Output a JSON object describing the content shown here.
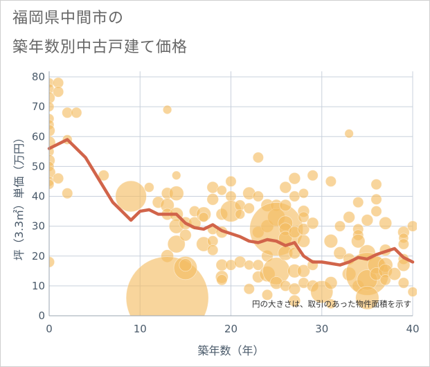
{
  "title_line1": "福岡県中間市の",
  "title_line2": "築年数別中古戸建て価格",
  "colors": {
    "bubble": "#f4bb5f",
    "line": "#d1644a",
    "grid": "#c8d0dc",
    "axis_text": "#4a5a6a",
    "title_text": "#666666"
  },
  "chart_data": {
    "type": "scatter",
    "xlabel": "築年数（年）",
    "ylabel": "坪（3.3㎡）単価（万円）",
    "xlim": [
      0,
      40
    ],
    "ylim": [
      0,
      80
    ],
    "xticks": [
      "0",
      "10",
      "20",
      "30",
      "40"
    ],
    "yticks": [
      "0",
      "10",
      "20",
      "30",
      "40",
      "50",
      "60",
      "70",
      "80"
    ],
    "annotation": "円の大きさは、取引のあった物件面積を示す",
    "grid": true,
    "bubbles": [
      [
        0,
        78,
        1
      ],
      [
        0,
        76,
        1
      ],
      [
        0,
        73,
        1.2
      ],
      [
        0,
        70,
        1
      ],
      [
        0,
        66,
        1
      ],
      [
        0,
        64,
        1
      ],
      [
        0,
        62,
        1.2
      ],
      [
        0,
        58,
        1.3
      ],
      [
        0,
        55,
        1
      ],
      [
        0,
        52,
        1.2
      ],
      [
        0,
        50,
        1
      ],
      [
        0,
        48,
        1.3
      ],
      [
        0,
        45,
        1
      ],
      [
        0,
        44,
        1
      ],
      [
        0,
        18,
        1.1
      ],
      [
        1,
        78,
        1.1
      ],
      [
        1,
        75,
        1.1
      ],
      [
        1,
        46,
        1.1
      ],
      [
        2,
        68,
        1.1
      ],
      [
        2,
        59,
        1
      ],
      [
        2,
        41,
        1.1
      ],
      [
        3,
        68,
        1.1
      ],
      [
        6,
        47,
        1.1
      ],
      [
        9,
        40,
        3.2
      ],
      [
        11,
        43,
        1
      ],
      [
        12,
        38,
        1.2
      ],
      [
        13,
        69,
        0.9
      ],
      [
        13,
        41,
        1.2
      ],
      [
        13,
        37,
        1.4
      ],
      [
        13,
        34,
        1.2
      ],
      [
        13,
        20,
        1.3
      ],
      [
        13,
        6,
        8.5
      ],
      [
        14,
        47,
        0.9
      ],
      [
        14,
        41,
        1.5
      ],
      [
        14,
        34,
        1.4
      ],
      [
        14,
        30,
        1.5
      ],
      [
        14,
        24,
        1.8
      ],
      [
        15,
        31,
        1.3
      ],
      [
        15,
        27,
        1.2
      ],
      [
        15,
        16,
        2.4
      ],
      [
        15,
        17,
        1.3
      ],
      [
        16,
        35,
        1.1
      ],
      [
        16,
        31,
        1.3
      ],
      [
        17,
        34,
        1.5
      ],
      [
        17,
        24,
        1.5
      ],
      [
        17,
        33,
        1
      ],
      [
        18,
        43,
        1.2
      ],
      [
        18,
        39,
        1.2
      ],
      [
        18,
        29,
        1.1
      ],
      [
        18,
        25,
        1.1
      ],
      [
        18,
        22,
        1.1
      ],
      [
        19,
        42,
        1
      ],
      [
        19,
        34,
        1.2
      ],
      [
        19,
        28,
        1.2
      ],
      [
        19,
        17,
        1.2
      ],
      [
        19,
        13,
        1.3
      ],
      [
        19,
        12,
        1.1
      ],
      [
        20,
        45,
        1.1
      ],
      [
        20,
        40,
        1.1
      ],
      [
        20,
        35,
        2.2
      ],
      [
        20,
        17,
        1.1
      ],
      [
        21,
        37,
        1.1
      ],
      [
        21,
        34,
        1
      ],
      [
        21,
        18,
        1.2
      ],
      [
        22,
        41,
        1.3
      ],
      [
        22,
        36,
        1.1
      ],
      [
        22,
        17,
        1
      ],
      [
        22,
        9,
        1.1
      ],
      [
        23,
        53,
        1.1
      ],
      [
        23,
        40,
        1.1
      ],
      [
        23,
        28,
        1.2
      ],
      [
        23,
        17,
        1.1
      ],
      [
        23,
        13,
        1.2
      ],
      [
        24,
        37,
        1.3
      ],
      [
        24,
        30,
        1.3
      ],
      [
        24,
        20,
        1.2
      ],
      [
        24,
        14,
        1.6
      ],
      [
        24,
        7,
        1.1
      ],
      [
        25,
        37,
        1.2
      ],
      [
        25,
        33,
        1.8
      ],
      [
        25,
        29,
        5.5
      ],
      [
        25,
        15,
        2.8
      ],
      [
        25,
        11,
        1.3
      ],
      [
        26,
        43,
        1.2
      ],
      [
        26,
        37,
        1.2
      ],
      [
        26,
        31,
        1.5
      ],
      [
        26,
        29,
        1.3
      ],
      [
        26,
        26,
        1.4
      ],
      [
        26,
        21,
        1.5
      ],
      [
        26,
        10,
        1.1
      ],
      [
        27,
        46,
        1.2
      ],
      [
        27,
        40,
        1.1
      ],
      [
        27,
        28,
        1.2
      ],
      [
        27,
        21,
        1.2
      ],
      [
        27,
        15,
        1.4
      ],
      [
        27,
        9,
        1.2
      ],
      [
        27,
        5,
        1.2
      ],
      [
        28,
        41,
        1
      ],
      [
        28,
        35,
        1.2
      ],
      [
        28,
        33,
        1.1
      ],
      [
        28,
        29,
        1.2
      ],
      [
        28,
        25,
        1.3
      ],
      [
        28,
        15,
        1.3
      ],
      [
        28,
        11,
        1.1
      ],
      [
        29,
        47,
        1.1
      ],
      [
        29,
        31,
        1.2
      ],
      [
        29,
        17,
        1.1
      ],
      [
        29,
        10,
        1.2
      ],
      [
        30,
        8,
        2.3
      ],
      [
        31,
        45,
        1.1
      ],
      [
        31,
        25,
        1.4
      ],
      [
        31,
        11,
        1.3
      ],
      [
        31,
        4,
        1
      ],
      [
        32,
        30,
        1.1
      ],
      [
        32,
        21,
        1.3
      ],
      [
        33,
        61,
        0.9
      ],
      [
        33,
        33,
        1.2
      ],
      [
        33,
        14,
        1.4
      ],
      [
        33,
        19,
        1.2
      ],
      [
        34,
        38,
        1.1
      ],
      [
        34,
        29,
        1.1
      ],
      [
        34,
        27,
        1.1
      ],
      [
        34,
        25,
        1.4
      ],
      [
        34,
        10,
        1.2
      ],
      [
        35,
        32,
        1.2
      ],
      [
        35,
        21,
        1.7
      ],
      [
        35,
        14,
        4.4
      ],
      [
        35,
        12,
        2.1
      ],
      [
        35,
        6,
        2.4
      ],
      [
        36,
        44,
        1.1
      ],
      [
        36,
        39,
        1.1
      ],
      [
        36,
        35,
        1.1
      ],
      [
        36,
        17,
        1.8
      ],
      [
        36,
        14,
        1.3
      ],
      [
        37,
        31,
        1.3
      ],
      [
        37,
        22,
        1.2
      ],
      [
        37,
        17,
        1.5
      ],
      [
        37,
        15,
        1.4
      ],
      [
        37,
        12,
        1.1
      ],
      [
        38,
        14,
        1.3
      ],
      [
        39,
        28,
        1.2
      ],
      [
        39,
        26,
        1
      ],
      [
        39,
        24,
        1.1
      ],
      [
        39,
        19,
        1.1
      ],
      [
        39,
        17,
        1.3
      ],
      [
        39,
        11,
        1.1
      ],
      [
        40,
        30,
        1.1
      ],
      [
        40,
        8,
        1
      ]
    ],
    "trend": {
      "x": [
        0,
        1,
        2,
        3,
        4,
        5,
        6,
        7,
        8,
        9,
        10,
        11,
        12,
        13,
        14,
        15,
        16,
        17,
        18,
        19,
        20,
        21,
        22,
        23,
        24,
        25,
        26,
        27,
        28,
        29,
        30,
        31,
        32,
        33,
        34,
        35,
        36,
        37,
        38,
        39,
        40
      ],
      "y": [
        56,
        57.5,
        59,
        56,
        53,
        48,
        43,
        38,
        35,
        32,
        35,
        35.5,
        34,
        34,
        34,
        31,
        29.5,
        29,
        30.5,
        28.5,
        27.5,
        26.5,
        25,
        24.5,
        25.5,
        25,
        23.5,
        24.5,
        20,
        18,
        18,
        17.5,
        17,
        18,
        19.5,
        19,
        20.5,
        21.5,
        22.5,
        19.5,
        18
      ]
    }
  }
}
